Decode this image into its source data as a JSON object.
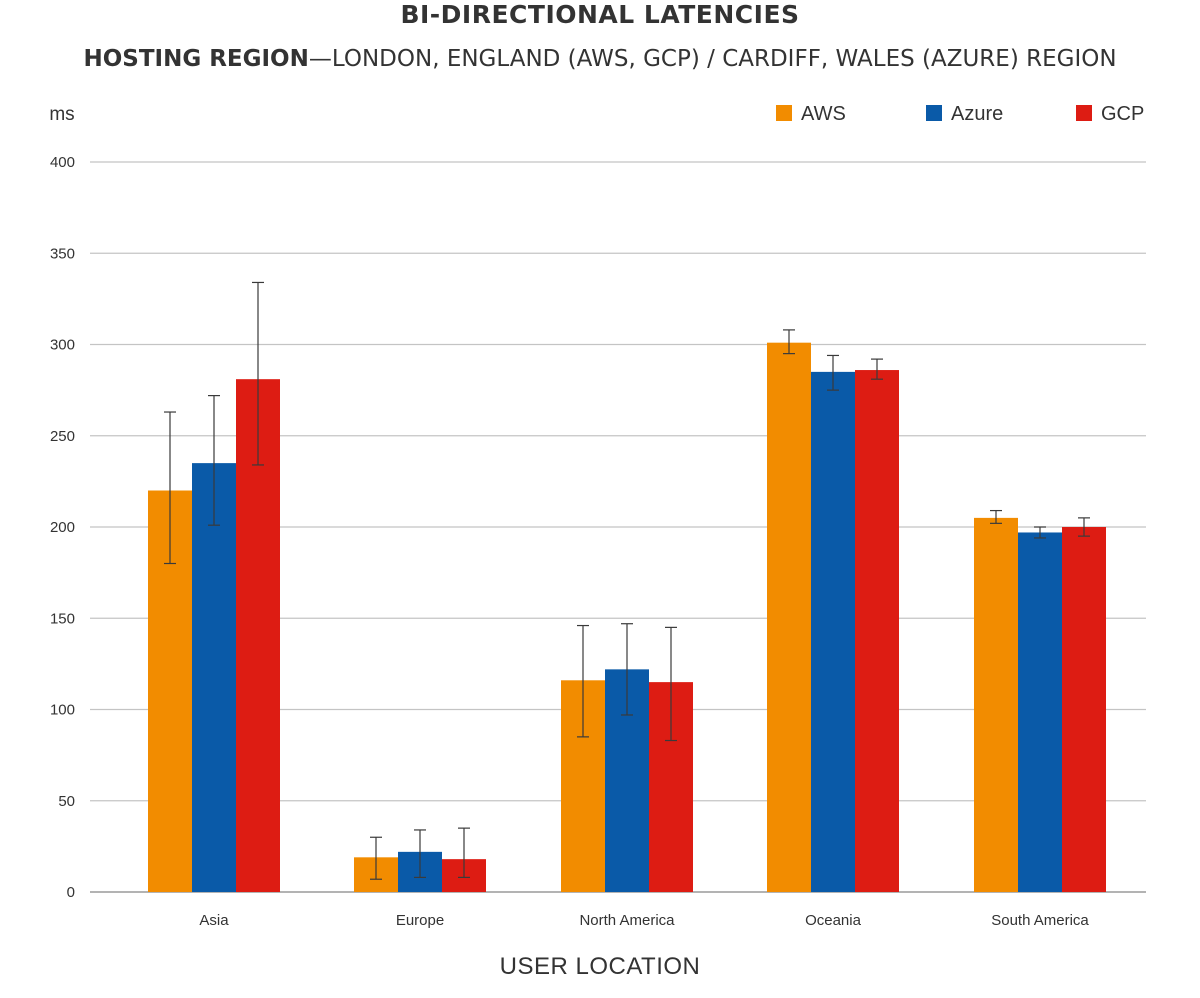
{
  "header": {
    "title": "BI-DIRECTIONAL LATENCIES",
    "subtitle_lead": "HOSTING REGION",
    "subtitle_rest": "—LONDON, ENGLAND (AWS, GCP) / CARDIFF, WALES (AZURE) REGION"
  },
  "chart_data": {
    "type": "bar",
    "title": "BI-DIRECTIONAL LATENCIES",
    "subtitle": "HOSTING REGION—LONDON, ENGLAND (AWS, GCP) / CARDIFF, WALES (AZURE) REGION",
    "xlabel": "USER LOCATION",
    "ylabel": "ms",
    "ylim": [
      0,
      400
    ],
    "yticks": [
      0,
      50,
      100,
      150,
      200,
      250,
      300,
      350,
      400
    ],
    "grid": true,
    "legend_position": "top-right",
    "categories": [
      "Asia",
      "Europe",
      "North America",
      "Oceania",
      "South America"
    ],
    "series": [
      {
        "name": "AWS",
        "color": "#f28c00",
        "values": [
          220,
          19,
          116,
          301,
          205
        ],
        "error_low": [
          180,
          7,
          85,
          295,
          202
        ],
        "error_high": [
          263,
          30,
          146,
          308,
          209
        ]
      },
      {
        "name": "Azure",
        "color": "#0a5aa8",
        "values": [
          235,
          22,
          122,
          285,
          197
        ],
        "error_low": [
          201,
          8,
          97,
          275,
          194
        ],
        "error_high": [
          272,
          34,
          147,
          294,
          200
        ]
      },
      {
        "name": "GCP",
        "color": "#dd1c13",
        "values": [
          281,
          18,
          115,
          286,
          200
        ],
        "error_low": [
          234,
          8,
          83,
          281,
          195
        ],
        "error_high": [
          334,
          35,
          145,
          292,
          205
        ]
      }
    ]
  }
}
